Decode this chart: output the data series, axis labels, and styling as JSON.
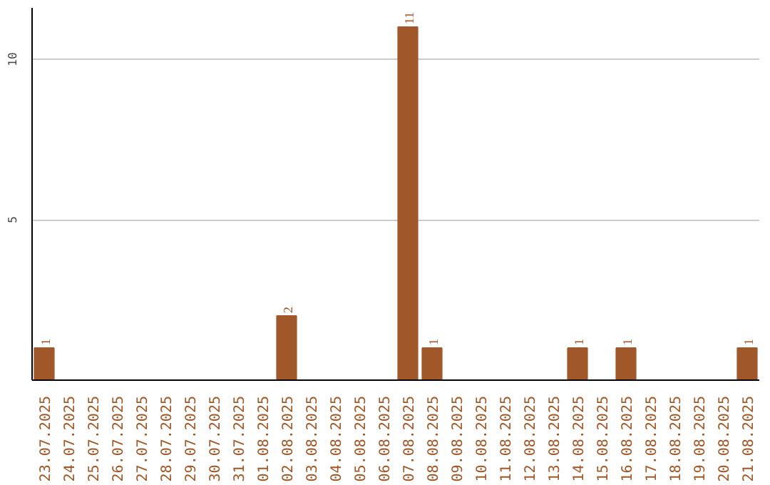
{
  "chart_data": {
    "type": "bar",
    "categories": [
      "23.07.2025",
      "24.07.2025",
      "25.07.2025",
      "26.07.2025",
      "27.07.2025",
      "28.07.2025",
      "29.07.2025",
      "30.07.2025",
      "31.07.2025",
      "01.08.2025",
      "02.08.2025",
      "03.08.2025",
      "04.08.2025",
      "05.08.2025",
      "06.08.2025",
      "07.08.2025",
      "08.08.2025",
      "09.08.2025",
      "10.08.2025",
      "11.08.2025",
      "12.08.2025",
      "13.08.2025",
      "14.08.2025",
      "15.08.2025",
      "16.08.2025",
      "17.08.2025",
      "18.08.2025",
      "19.08.2025",
      "20.08.2025",
      "21.08.2025"
    ],
    "values": [
      1,
      0,
      0,
      0,
      0,
      0,
      0,
      0,
      0,
      0,
      2,
      0,
      0,
      0,
      0,
      11,
      1,
      0,
      0,
      0,
      0,
      0,
      1,
      0,
      1,
      0,
      0,
      0,
      0,
      1
    ],
    "value_labels": [
      "1",
      null,
      null,
      null,
      null,
      null,
      null,
      null,
      null,
      null,
      "2",
      null,
      null,
      null,
      null,
      "11",
      "1",
      null,
      null,
      null,
      null,
      null,
      "1",
      null,
      "1",
      null,
      null,
      null,
      null,
      "1"
    ],
    "color": "#a0582a",
    "ylim": [
      0,
      11.6
    ],
    "yticks": [
      5,
      10
    ],
    "grid": "y"
  }
}
